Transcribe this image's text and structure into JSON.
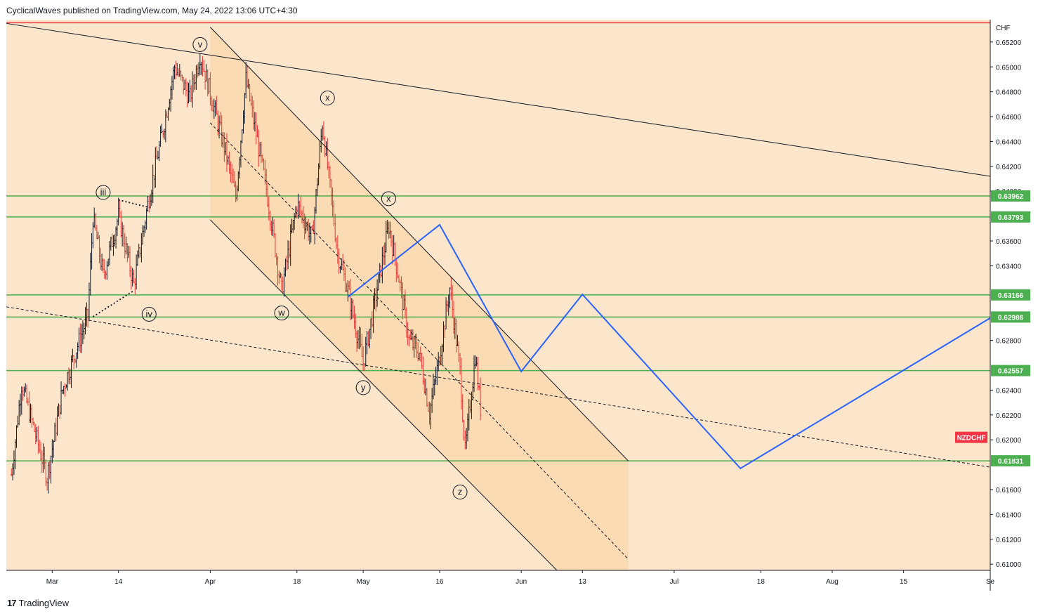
{
  "header": {
    "publisher_line": "CyclicalWaves published on TradingView.com, May 24, 2022 13:06 UTC+4:30"
  },
  "footer": {
    "brand_logo": "17",
    "brand_name": "TradingView"
  },
  "chart_data": {
    "type": "candlestick",
    "symbol": "NZDCHF",
    "currency": "CHF",
    "y_axis": {
      "ylim": [
        0.6095,
        0.6538
      ],
      "ticks": [
        "0.65200",
        "0.65000",
        "0.64800",
        "0.64600",
        "0.64400",
        "0.64200",
        "0.64000",
        "0.63600",
        "0.63400",
        "0.62800",
        "0.62400",
        "0.62200",
        "0.62000",
        "0.61600",
        "0.61400",
        "0.61200",
        "0.61000"
      ],
      "tick_values": [
        0.652,
        0.65,
        0.648,
        0.646,
        0.644,
        0.642,
        0.64,
        0.636,
        0.634,
        0.628,
        0.624,
        0.622,
        0.62,
        0.616,
        0.614,
        0.612,
        0.61
      ]
    },
    "x_axis": {
      "tick_labels": [
        "Mar",
        "14",
        "Apr",
        "18",
        "May",
        "16",
        "Jun",
        "13",
        "Jul",
        "18",
        "Aug",
        "15",
        "Se"
      ],
      "tick_dates": [
        "2022-03-01",
        "2022-03-14",
        "2022-04-01",
        "2022-04-18",
        "2022-05-01",
        "2022-05-16",
        "2022-06-01",
        "2022-06-13",
        "2022-07-01",
        "2022-07-18",
        "2022-08-01",
        "2022-08-15",
        "2022-09-01"
      ],
      "xlim": [
        "2022-02-20",
        "2022-09-01"
      ]
    },
    "horizontal_levels": [
      {
        "label": "0.63962",
        "value": 0.63962
      },
      {
        "label": "0.63793",
        "value": 0.63793
      },
      {
        "label": "0.63166",
        "value": 0.63166
      },
      {
        "label": "0.62988",
        "value": 0.62988
      },
      {
        "label": "0.62557",
        "value": 0.62557
      },
      {
        "label": "0.61831",
        "value": 0.61831
      }
    ],
    "symbol_tag": {
      "label": "NZDCHF",
      "value": 0.6202
    },
    "red_top_line_value": 0.65355,
    "candle_anchors": [
      {
        "date": "2022-02-21",
        "value": 0.6172
      },
      {
        "date": "2022-02-23",
        "value": 0.6245
      },
      {
        "date": "2022-02-28",
        "value": 0.617
      },
      {
        "date": "2022-03-03",
        "value": 0.624
      },
      {
        "date": "2022-03-08",
        "value": 0.63
      },
      {
        "date": "2022-03-09",
        "value": 0.6379
      },
      {
        "date": "2022-03-11",
        "value": 0.6332
      },
      {
        "date": "2022-03-14",
        "value": 0.638
      },
      {
        "date": "2022-03-17",
        "value": 0.6325
      },
      {
        "date": "2022-03-20",
        "value": 0.6395
      },
      {
        "date": "2022-03-23",
        "value": 0.6455
      },
      {
        "date": "2022-03-25",
        "value": 0.65
      },
      {
        "date": "2022-03-28",
        "value": 0.6475
      },
      {
        "date": "2022-03-30",
        "value": 0.651
      },
      {
        "date": "2022-04-04",
        "value": 0.6432
      },
      {
        "date": "2022-04-06",
        "value": 0.6395
      },
      {
        "date": "2022-04-08",
        "value": 0.649
      },
      {
        "date": "2022-04-12",
        "value": 0.6402
      },
      {
        "date": "2022-04-15",
        "value": 0.632
      },
      {
        "date": "2022-04-18",
        "value": 0.639
      },
      {
        "date": "2022-04-21",
        "value": 0.6362
      },
      {
        "date": "2022-04-23",
        "value": 0.6455
      },
      {
        "date": "2022-04-26",
        "value": 0.635
      },
      {
        "date": "2022-04-28",
        "value": 0.632
      },
      {
        "date": "2022-05-01",
        "value": 0.6262
      },
      {
        "date": "2022-05-03",
        "value": 0.6305
      },
      {
        "date": "2022-05-06",
        "value": 0.6372
      },
      {
        "date": "2022-05-08",
        "value": 0.633
      },
      {
        "date": "2022-05-10",
        "value": 0.628
      },
      {
        "date": "2022-05-12",
        "value": 0.627
      },
      {
        "date": "2022-05-14",
        "value": 0.6222
      },
      {
        "date": "2022-05-16",
        "value": 0.6268
      },
      {
        "date": "2022-05-18",
        "value": 0.6322
      },
      {
        "date": "2022-05-20",
        "value": 0.6255
      },
      {
        "date": "2022-05-21",
        "value": 0.619
      },
      {
        "date": "2022-05-23",
        "value": 0.6268
      },
      {
        "date": "2022-05-24",
        "value": 0.6225
      }
    ],
    "wave_labels": [
      {
        "text": "v",
        "date": "2022-03-30",
        "value": 0.6518
      },
      {
        "text": "iii",
        "date": "2022-03-11",
        "value": 0.6399
      },
      {
        "text": "iv",
        "date": "2022-03-20",
        "value": 0.6301
      },
      {
        "text": "x",
        "date": "2022-04-24",
        "value": 0.6475
      },
      {
        "text": "x",
        "date": "2022-05-06",
        "value": 0.6394
      },
      {
        "text": "w",
        "date": "2022-04-15",
        "value": 0.6302
      },
      {
        "text": "y",
        "date": "2022-05-01",
        "value": 0.6242
      },
      {
        "text": "z",
        "date": "2022-05-20",
        "value": 0.6158
      }
    ],
    "trendlines": [
      {
        "style": "solid",
        "points": [
          [
            "2022-02-20",
            0.6535
          ],
          [
            "2022-09-01",
            0.6412
          ]
        ]
      },
      {
        "style": "solid",
        "points": [
          [
            "2022-04-01",
            0.6532
          ],
          [
            "2022-06-22",
            0.6183
          ]
        ]
      },
      {
        "style": "solid",
        "points": [
          [
            "2022-04-01",
            0.6377
          ],
          [
            "2022-06-08",
            0.6095
          ]
        ]
      },
      {
        "style": "dashed",
        "points": [
          [
            "2022-04-01",
            0.6455
          ],
          [
            "2022-06-22",
            0.6104
          ]
        ]
      },
      {
        "style": "dashed",
        "points": [
          [
            "2022-02-20",
            0.6307
          ],
          [
            "2022-09-01",
            0.6178
          ]
        ]
      },
      {
        "style": "dotted",
        "points": [
          [
            "2022-03-14",
            0.6393
          ],
          [
            "2022-03-20",
            0.6387
          ]
        ]
      },
      {
        "style": "dotted",
        "points": [
          [
            "2022-03-09",
            0.6299
          ],
          [
            "2022-03-17",
            0.632
          ]
        ]
      }
    ],
    "projection_path": [
      [
        "2022-04-28",
        0.6315
      ],
      [
        "2022-05-16",
        0.6373
      ],
      [
        "2022-06-01",
        0.6255
      ],
      [
        "2022-06-13",
        0.6317
      ],
      [
        "2022-07-14",
        0.6177
      ],
      [
        "2022-09-01",
        0.6298
      ]
    ],
    "grid": false,
    "colors": {
      "chart_background": "#fbe5cb",
      "channel_fill": "#fad9b0",
      "level_line": "#4caf50",
      "level_tag_bg": "#4caf50",
      "symbol_tag_bg": "#f23645",
      "projection": "#2962ff",
      "candle_bull": "#131722",
      "candle_bear": "#e53935",
      "top_border": "#f23645",
      "trendline": "#131722"
    }
  }
}
